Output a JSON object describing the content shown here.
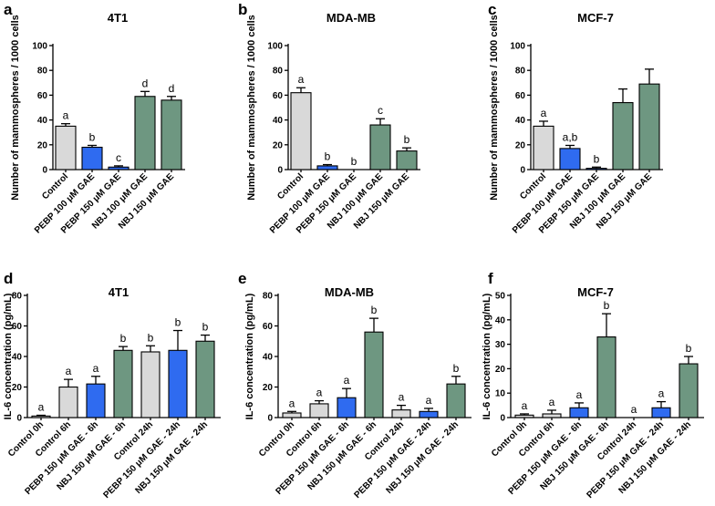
{
  "colors": {
    "control": "#d9d9d9",
    "pebp": "#2f6bf0",
    "nbj": "#6e9781"
  },
  "chart_data": [
    {
      "panel": "a",
      "type": "bar",
      "title": "4T1",
      "ylabel": "Number of mammospheres / 1000 cells",
      "ylim": [
        0,
        100
      ],
      "yticks": [
        0,
        20,
        40,
        60,
        80,
        100
      ],
      "categories": [
        "Control",
        "PEBP 100 μM GAE",
        "PEBP 150 μM GAE",
        "NBJ 100 μM GAE",
        "NBJ 150 μM GAE"
      ],
      "values": [
        35,
        18,
        2,
        59,
        56
      ],
      "errors": [
        2,
        1.5,
        1,
        4,
        3
      ],
      "groups": [
        "control",
        "pebp",
        "pebp",
        "nbj",
        "nbj"
      ],
      "labels": [
        "a",
        "b",
        "c",
        "d",
        "d"
      ]
    },
    {
      "panel": "b",
      "type": "bar",
      "title": "MDA-MB",
      "ylabel": "Number of mammospheres / 1000 cells",
      "ylim": [
        0,
        100
      ],
      "yticks": [
        0,
        20,
        40,
        60,
        80,
        100
      ],
      "categories": [
        "Control",
        "PEBP 100 μM GAE",
        "PEBP 150 μM GAE",
        "NBJ 100 μM GAE",
        "NBJ 150 μM GAE"
      ],
      "values": [
        62,
        3,
        0,
        36,
        15
      ],
      "errors": [
        4,
        1,
        0,
        5,
        2.5
      ],
      "groups": [
        "control",
        "pebp",
        "pebp",
        "nbj",
        "nbj"
      ],
      "labels": [
        "a",
        "b",
        "b",
        "c",
        "b"
      ]
    },
    {
      "panel": "c",
      "type": "bar",
      "title": "MCF-7",
      "ylabel": "Number of mammospheres / 1000 cells",
      "ylim": [
        0,
        100
      ],
      "yticks": [
        0,
        20,
        40,
        60,
        80,
        100
      ],
      "categories": [
        "Control",
        "PEBP 100 μM GAE",
        "PEBP 150 μM GAE",
        "NBJ 100 μM GAE",
        "NBJ 150 μM GAE"
      ],
      "values": [
        35,
        17,
        1,
        54,
        69
      ],
      "errors": [
        4,
        2.5,
        1,
        11,
        12
      ],
      "groups": [
        "control",
        "pebp",
        "pebp",
        "nbj",
        "nbj"
      ],
      "labels": [
        "a",
        "a,b",
        "b",
        "",
        ""
      ]
    },
    {
      "panel": "d",
      "type": "bar",
      "title": "4T1",
      "ylabel": "IL-6 concentration (pg/mL)",
      "ylim": [
        0,
        80
      ],
      "yticks": [
        0,
        20,
        40,
        60,
        80
      ],
      "categories": [
        "Control 0h",
        "Control 6h",
        "PEBP 150 μM GAE - 6h",
        "NBJ 150 μM GAE - 6h",
        "Control 24h",
        "PEBP 150 μM GAE - 24h",
        "NBJ 150 μM GAE - 24h"
      ],
      "values": [
        1,
        20,
        22,
        44,
        43,
        44,
        50
      ],
      "errors": [
        0.5,
        5,
        5,
        2.5,
        4,
        13,
        4
      ],
      "groups": [
        "control",
        "control",
        "pebp",
        "nbj",
        "control",
        "pebp",
        "nbj"
      ],
      "labels": [
        "a",
        "a",
        "a",
        "b",
        "b",
        "b",
        "b"
      ]
    },
    {
      "panel": "e",
      "type": "bar",
      "title": "MDA-MB",
      "ylabel": "IL-6 concentration (pg/mL)",
      "ylim": [
        0,
        80
      ],
      "yticks": [
        0,
        20,
        40,
        60,
        80
      ],
      "categories": [
        "Control 0h",
        "Control 6h",
        "PEBP 150 μM GAE - 6h",
        "NBJ 150 μM GAE - 6h",
        "Control 24h",
        "PEBP 150 μM GAE - 24h",
        "NBJ 150 μM GAE - 24h"
      ],
      "values": [
        3,
        9,
        13,
        56,
        5,
        4,
        22
      ],
      "errors": [
        1,
        2,
        6,
        9,
        3,
        2,
        5
      ],
      "groups": [
        "control",
        "control",
        "pebp",
        "nbj",
        "control",
        "pebp",
        "nbj"
      ],
      "labels": [
        "a",
        "a",
        "a",
        "b",
        "a",
        "a",
        "b"
      ]
    },
    {
      "panel": "f",
      "type": "bar",
      "title": "MCF-7",
      "ylabel": "IL-6 concentration (pg/mL)",
      "ylim": [
        0,
        50
      ],
      "yticks": [
        0,
        10,
        20,
        30,
        40,
        50
      ],
      "categories": [
        "Control 0h",
        "Control 6h",
        "PEBP 150 μM GAE - 6h",
        "NBJ 150 μM GAE - 6h",
        "Control 24h",
        "PEBP 150 μM GAE - 24h",
        "NBJ 150 μM GAE - 24h"
      ],
      "values": [
        1,
        1.5,
        4,
        33,
        0,
        4,
        22
      ],
      "errors": [
        0.5,
        1.5,
        2,
        9.5,
        0,
        2.5,
        3
      ],
      "groups": [
        "control",
        "control",
        "pebp",
        "nbj",
        "control",
        "pebp",
        "nbj"
      ],
      "labels": [
        "a",
        "a",
        "a",
        "b",
        "a",
        "a",
        "b"
      ]
    }
  ]
}
